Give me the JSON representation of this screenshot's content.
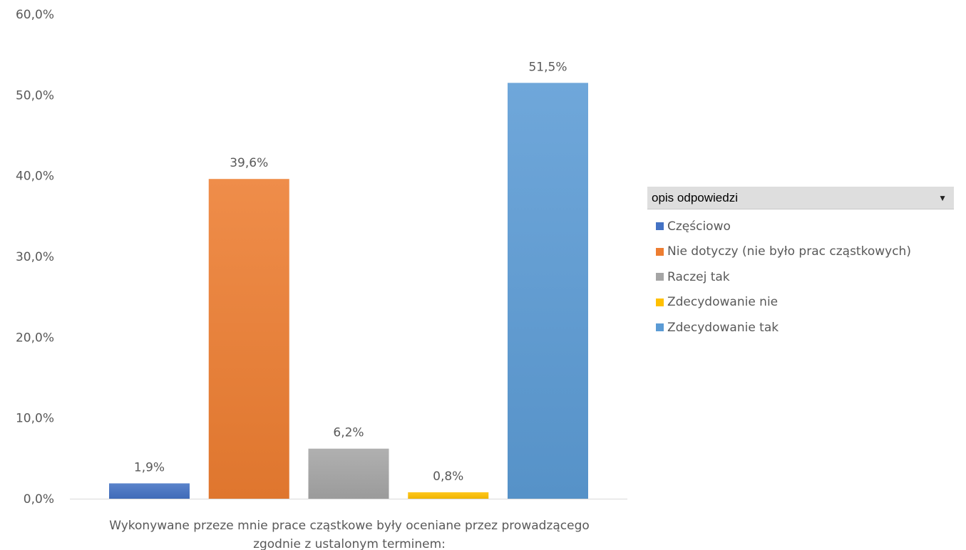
{
  "chart_data": {
    "type": "bar",
    "category_label": "Wykonywane przeze mnie prace cząstkowe były oceniane przez prowadzącego zgodnie z ustalonym terminem:",
    "category_lines": [
      "Wykonywane przeze mnie prace cząstkowe były oceniane przez prowadzącego",
      "zgodnie z ustalonym terminem:"
    ],
    "ylim": [
      0,
      60
    ],
    "yticks": [
      0,
      10,
      20,
      30,
      40,
      50,
      60
    ],
    "ytick_labels": [
      "0,0%",
      "10,0%",
      "20,0%",
      "30,0%",
      "40,0%",
      "50,0%",
      "60,0%"
    ],
    "grid": false,
    "legend_position": "right",
    "series": [
      {
        "name": "Częściowo",
        "value": 1.9,
        "label": "1,9%",
        "color": "#4472c4"
      },
      {
        "name": "Nie dotyczy (nie było prac cząstkowych)",
        "value": 39.6,
        "label": "39,6%",
        "color": "#ed7d31"
      },
      {
        "name": "Raczej tak",
        "value": 6.2,
        "label": "6,2%",
        "color": "#a5a5a5"
      },
      {
        "name": "Zdecydowanie nie",
        "value": 0.8,
        "label": "0,8%",
        "color": "#ffc000"
      },
      {
        "name": "Zdecydowanie tak",
        "value": 51.5,
        "label": "51,5%",
        "color": "#5b9bd5"
      }
    ]
  },
  "legend": {
    "title": "opis odpowiedzi",
    "dropdown_icon": "triangle-down-icon"
  }
}
